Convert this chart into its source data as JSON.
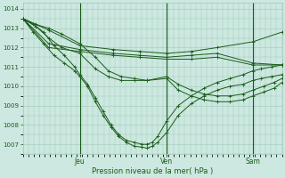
{
  "xlabel": "Pression niveau de la mer( hPa )",
  "bg_color": "#cce8e0",
  "grid_color": "#9ec8b8",
  "line_color": "#1a5c1a",
  "ylim": [
    1006.5,
    1014.3
  ],
  "xlim": [
    0,
    1.0
  ],
  "yticks": [
    1007,
    1008,
    1009,
    1010,
    1011,
    1012,
    1013,
    1014
  ],
  "day_labels": [
    "Jeu",
    "Ven",
    "Sam"
  ],
  "day_positions": [
    0.22,
    0.555,
    0.888
  ],
  "series": [
    {
      "x": [
        0.0,
        0.1,
        0.22,
        0.35,
        0.45,
        0.555,
        0.65,
        0.75,
        0.888,
        1.0
      ],
      "y": [
        1013.5,
        1012.9,
        1012.1,
        1011.9,
        1011.8,
        1011.7,
        1011.8,
        1012.0,
        1012.3,
        1012.8
      ]
    },
    {
      "x": [
        0.0,
        0.1,
        0.22,
        0.35,
        0.45,
        0.555,
        0.65,
        0.75,
        0.888,
        1.0
      ],
      "y": [
        1013.5,
        1012.2,
        1011.9,
        1011.7,
        1011.6,
        1011.5,
        1011.6,
        1011.7,
        1011.2,
        1011.1
      ]
    },
    {
      "x": [
        0.0,
        0.1,
        0.22,
        0.35,
        0.45,
        0.555,
        0.65,
        0.75,
        0.888,
        1.0
      ],
      "y": [
        1013.5,
        1012.0,
        1011.8,
        1011.6,
        1011.5,
        1011.4,
        1011.4,
        1011.5,
        1011.1,
        1011.1
      ]
    },
    {
      "x": [
        0.0,
        0.05,
        0.1,
        0.15,
        0.22,
        0.28,
        0.33,
        0.38,
        0.43,
        0.48,
        0.555,
        0.6,
        0.65,
        0.7,
        0.75,
        0.8,
        0.85,
        0.888,
        0.93,
        0.97,
        1.0
      ],
      "y": [
        1013.5,
        1013.2,
        1013.0,
        1012.7,
        1012.2,
        1011.5,
        1010.8,
        1010.5,
        1010.4,
        1010.3,
        1010.4,
        1009.8,
        1009.5,
        1009.3,
        1009.2,
        1009.2,
        1009.3,
        1009.5,
        1009.7,
        1009.9,
        1010.2
      ]
    },
    {
      "x": [
        0.0,
        0.05,
        0.1,
        0.15,
        0.22,
        0.28,
        0.33,
        0.38,
        0.43,
        0.48,
        0.555,
        0.6,
        0.65,
        0.7,
        0.75,
        0.8,
        0.85,
        0.888,
        0.93,
        0.97,
        1.0
      ],
      "y": [
        1013.5,
        1013.1,
        1012.5,
        1012.0,
        1011.7,
        1010.9,
        1010.5,
        1010.3,
        1010.3,
        1010.3,
        1010.5,
        1010.1,
        1009.8,
        1009.6,
        1009.5,
        1009.5,
        1009.6,
        1009.8,
        1010.0,
        1010.2,
        1010.4
      ]
    },
    {
      "x": [
        0.0,
        0.04,
        0.08,
        0.12,
        0.16,
        0.2,
        0.22,
        0.25,
        0.28,
        0.31,
        0.34,
        0.37,
        0.4,
        0.43,
        0.46,
        0.48,
        0.5,
        0.52,
        0.555,
        0.6,
        0.65,
        0.7,
        0.75,
        0.8,
        0.85,
        0.888,
        0.92,
        0.96,
        1.0
      ],
      "y": [
        1013.5,
        1013.2,
        1012.8,
        1012.1,
        1011.6,
        1011.0,
        1010.6,
        1010.1,
        1009.4,
        1008.7,
        1008.0,
        1007.5,
        1007.2,
        1007.1,
        1007.0,
        1007.0,
        1007.1,
        1007.4,
        1008.2,
        1009.0,
        1009.5,
        1009.9,
        1010.2,
        1010.4,
        1010.6,
        1010.8,
        1010.9,
        1011.0,
        1011.1
      ]
    },
    {
      "x": [
        0.0,
        0.04,
        0.08,
        0.12,
        0.16,
        0.2,
        0.22,
        0.25,
        0.28,
        0.31,
        0.34,
        0.37,
        0.4,
        0.43,
        0.46,
        0.48,
        0.5,
        0.52,
        0.555,
        0.6,
        0.65,
        0.7,
        0.75,
        0.8,
        0.85,
        0.888,
        0.92,
        0.96,
        1.0
      ],
      "y": [
        1013.5,
        1012.8,
        1012.2,
        1011.6,
        1011.2,
        1010.8,
        1010.5,
        1010.0,
        1009.2,
        1008.5,
        1007.9,
        1007.4,
        1007.1,
        1006.9,
        1006.85,
        1006.8,
        1006.9,
        1007.1,
        1007.6,
        1008.5,
        1009.1,
        1009.5,
        1009.8,
        1010.0,
        1010.1,
        1010.3,
        1010.4,
        1010.5,
        1010.6
      ]
    }
  ]
}
